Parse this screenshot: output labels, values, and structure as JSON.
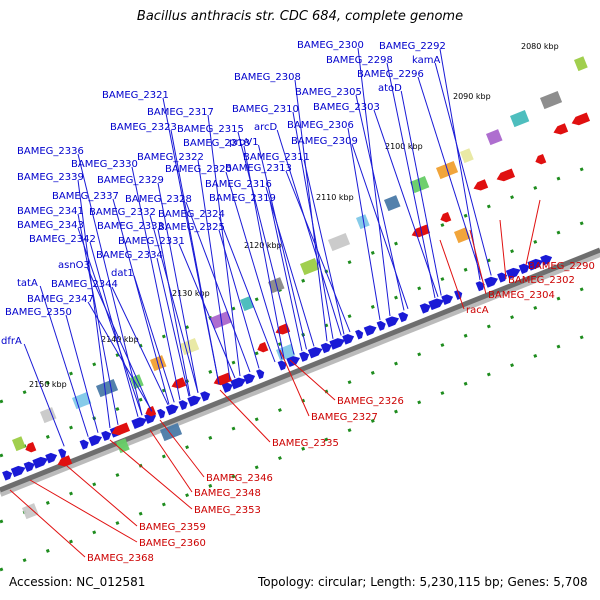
{
  "title": "Bacillus anthracis str. CDC 684, complete genome",
  "footer": {
    "accession": "Accession: NC_012581",
    "genome_info": "Topology: circular; Length: 5,230,115 bp; Genes: 5,708"
  },
  "colors": {
    "forward_gene": "#1a1ad6",
    "reverse_gene": "#e01010",
    "forward_label": "#0000cc",
    "reverse_label": "#cc0000",
    "backbone": "#6e6e6e",
    "dash_marker": "#1e8c1e"
  },
  "kbp_ticks": [
    "2080 kbp",
    "2090 kbp",
    "2100 kbp",
    "2110 kbp",
    "2120 kbp",
    "2130 kbp",
    "2140 kbp",
    "2150 kbp"
  ],
  "forward_labels": [
    "BAMEG_2300",
    "BAMEG_2292",
    "BAMEG_2298",
    "kamA",
    "BAMEG_2296",
    "BAMEG_2308",
    "atoD",
    "BAMEG_2305",
    "BAMEG_2321",
    "BAMEG_2303",
    "BAMEG_2317",
    "BAMEG_2310",
    "BAMEG_2323",
    "BAMEG_2315",
    "arcD",
    "BAMEG_2306",
    "BAMEG_2318",
    "proV1",
    "BAMEG_2309",
    "BAMEG_2336",
    "BAMEG_2322",
    "BAMEG_2311",
    "BAMEG_2330",
    "BAMEG_2320",
    "BAMEG_2313",
    "BAMEG_2339",
    "BAMEG_2329",
    "BAMEG_2316",
    "BAMEG_2337",
    "BAMEG_2328",
    "BAMEG_2319",
    "BAMEG_2341",
    "BAMEG_2332",
    "BAMEG_2324",
    "BAMEG_2343",
    "BAMEG_2333",
    "BAMEG_2325",
    "BAMEG_2342",
    "BAMEG_2331",
    "asnO3",
    "BAMEG_2334",
    "dat1",
    "tatA",
    "BAMEG_2344",
    "BAMEG_2347",
    "BAMEG_2350",
    "dfrA"
  ],
  "reverse_labels": [
    "BAMEG_2290",
    "BAMEG_2302",
    "BAMEG_2304",
    "racA",
    "BAMEG_2326",
    "BAMEG_2327",
    "BAMEG_2335",
    "BAMEG_2346",
    "BAMEG_2348",
    "BAMEG_2353",
    "BAMEG_2359",
    "BAMEG_2360",
    "BAMEG_2368"
  ]
}
